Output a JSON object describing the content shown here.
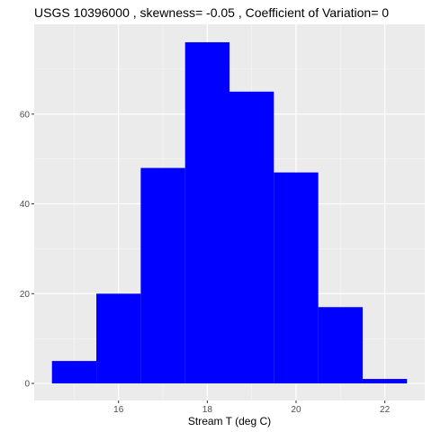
{
  "chart_data": {
    "type": "bar",
    "title": "USGS 10396000 , skewness= -0.05 , Coefficient of Variation= 0",
    "xlabel": "Stream T (deg C)",
    "ylabel": "",
    "bins": [
      {
        "x0": 14.5,
        "x1": 15.5,
        "count": 5
      },
      {
        "x0": 15.5,
        "x1": 16.5,
        "count": 20
      },
      {
        "x0": 16.5,
        "x1": 17.5,
        "count": 48
      },
      {
        "x0": 17.5,
        "x1": 18.5,
        "count": 76
      },
      {
        "x0": 18.5,
        "x1": 19.5,
        "count": 65
      },
      {
        "x0": 19.5,
        "x1": 20.5,
        "count": 47
      },
      {
        "x0": 20.5,
        "x1": 21.5,
        "count": 17
      },
      {
        "x0": 21.5,
        "x1": 22.5,
        "count": 1
      }
    ],
    "xlim": [
      14.1,
      22.9
    ],
    "ylim": [
      -3.8,
      80
    ],
    "x_ticks": [
      16,
      18,
      20,
      22
    ],
    "x_minor_ticks": [
      15,
      17,
      19,
      21
    ],
    "y_ticks": [
      0,
      20,
      40,
      60
    ],
    "y_minor_ticks": [
      10,
      30,
      50,
      70
    ],
    "bar_color": "#0000ff",
    "panel_color": "#ebebeb",
    "grid": true,
    "legend": "none"
  }
}
